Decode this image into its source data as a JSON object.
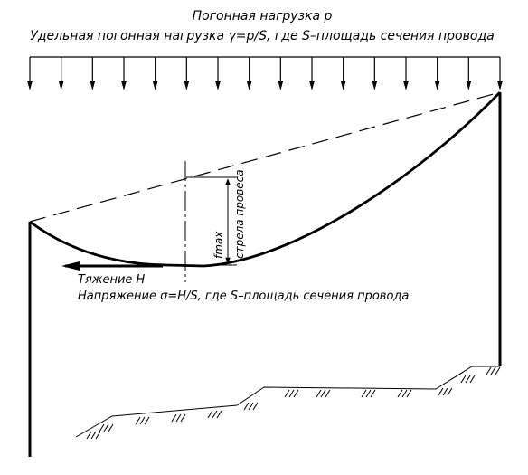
{
  "header": {
    "line1": "Погонная нагрузка p",
    "line2": "Удельная погонная нагрузка γ=p/S, где S–площадь сечения провода"
  },
  "sag": {
    "fmax_label": "fmax",
    "sag_label": "стрела провеса"
  },
  "tension": {
    "label": "Тяжение H",
    "stress_label": "Напряжение σ=H/S, где S–площадь сечения провода"
  },
  "load_arrow_count": 16
}
